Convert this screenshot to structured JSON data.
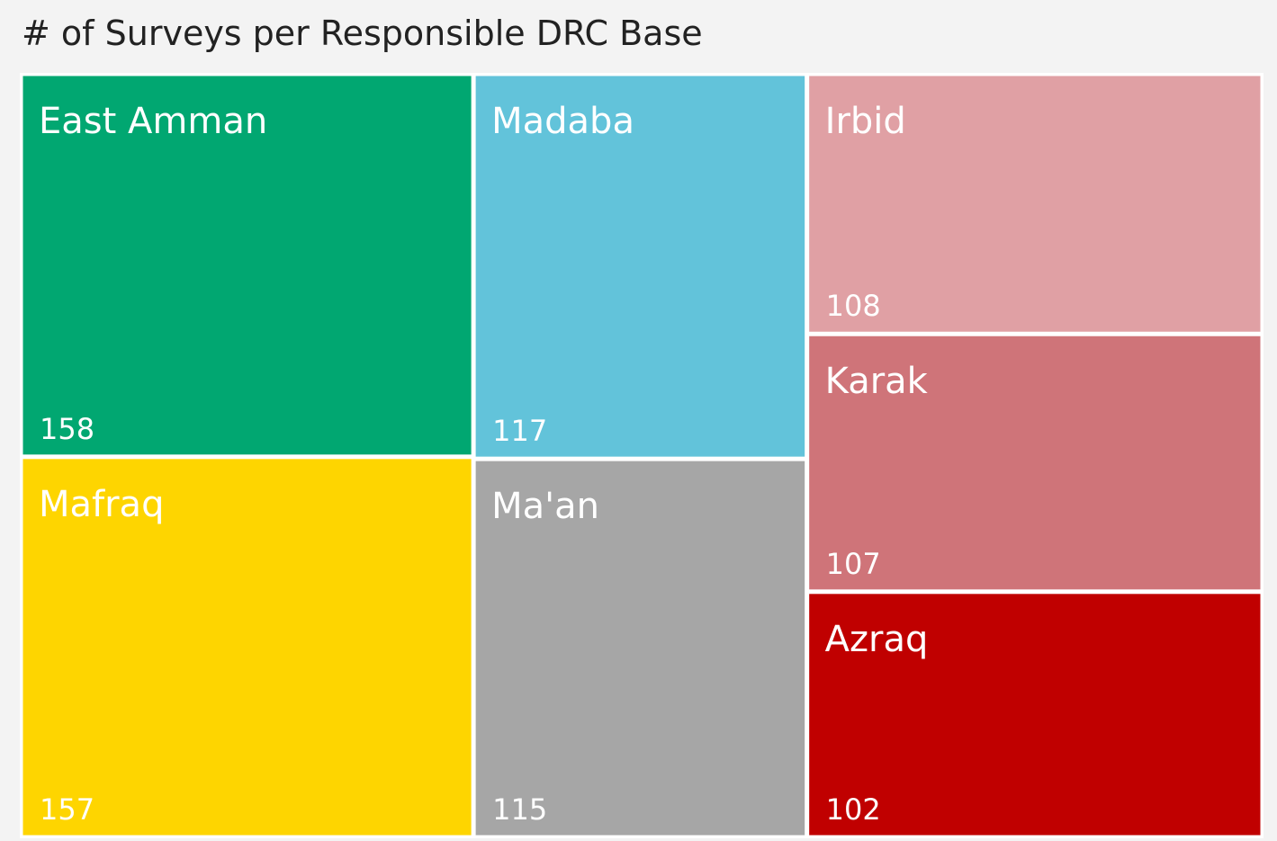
{
  "chart_data": {
    "type": "treemap",
    "title": "# of Surveys per Responsible DRC Base",
    "categories": [
      "East Amman",
      "Mafraq",
      "Madaba",
      "Ma'an",
      "Irbid",
      "Karak",
      "Azraq"
    ],
    "values": [
      158,
      157,
      117,
      115,
      108,
      107,
      102
    ],
    "colors": [
      "#01a771",
      "#fed500",
      "#62c3da",
      "#a6a6a6",
      "#e0a0a4",
      "#cf7479",
      "#c00000"
    ]
  }
}
